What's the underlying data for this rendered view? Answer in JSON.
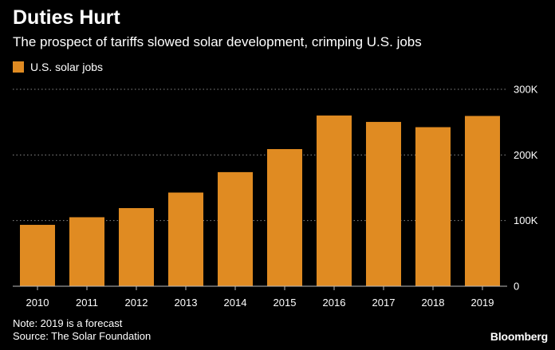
{
  "header": {
    "title": "Duties Hurt",
    "subtitle": "The prospect of tariffs slowed solar development, crimping U.S. jobs"
  },
  "legend": {
    "label": "U.S. solar jobs"
  },
  "footer": {
    "note": "Note: 2019 is a forecast",
    "source": "Source: The Solar Foundation",
    "brand": "Bloomberg"
  },
  "colors": {
    "bar": "#e08b22",
    "gridline": "#8a8a8a",
    "axis": "#bbbbbb",
    "text": "#ffffff",
    "background": "#000000"
  },
  "chart_data": {
    "type": "bar",
    "title": "Duties Hurt",
    "subtitle": "The prospect of tariffs slowed solar development, crimping U.S. jobs",
    "xlabel": "",
    "ylabel": "",
    "categories": [
      "2010",
      "2011",
      "2012",
      "2013",
      "2014",
      "2015",
      "2016",
      "2017",
      "2018",
      "2019"
    ],
    "series": [
      {
        "name": "U.S. solar jobs",
        "values": [
          93500,
          105100,
          119000,
          142700,
          173800,
          208900,
          260100,
          250300,
          242300,
          259400
        ]
      }
    ],
    "ylim": [
      0,
      300000
    ],
    "yticks": [
      0,
      100000,
      200000,
      300000
    ],
    "ytick_labels": [
      "0",
      "100K",
      "200K",
      "300K"
    ],
    "grid": true,
    "legend_position": "top-left",
    "y_axis_side": "right"
  }
}
